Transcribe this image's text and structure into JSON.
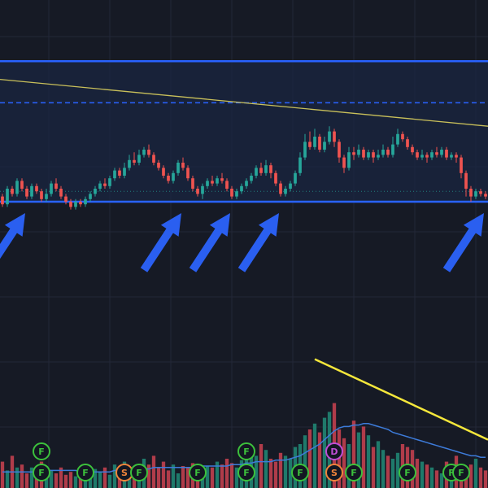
{
  "colors": {
    "background": "#161a25",
    "grid": "#232838",
    "up": "#26a69a",
    "down": "#ef5350",
    "up_volume": "#1f7a6b",
    "down_volume": "#b03c4a",
    "channel_line": "#2962ff",
    "channel_fill": "#1a2540",
    "trendline": "#c9c05a",
    "volume_trendline": "#f5e73b",
    "volume_ma": "#3d7bd9",
    "arrow": "#2a5ff0",
    "marker_f": "#3cc13c",
    "marker_s": "#f0833a",
    "marker_d": "#c04ed6"
  },
  "chart_data": {
    "type": "candlestick",
    "title": "",
    "xlabel": "",
    "ylabel": "",
    "grid": true,
    "price_range": [
      0,
      100
    ],
    "volume_range": [
      0,
      100
    ],
    "channel": {
      "top": 89,
      "bottom": 35,
      "mid_dashed": 73,
      "dotted": 39
    },
    "price_trendline": {
      "start": [
        0,
        82
      ],
      "end": [
        99,
        64
      ]
    },
    "volume_trendline": {
      "start": [
        64,
        88
      ],
      "end": [
        99,
        33
      ]
    },
    "candles": [
      [
        37,
        34,
        38,
        33
      ],
      [
        34,
        40,
        41,
        33
      ],
      [
        40,
        38,
        41,
        37
      ],
      [
        38,
        43,
        44,
        37
      ],
      [
        43,
        40,
        44,
        39
      ],
      [
        40,
        37,
        41,
        36
      ],
      [
        37,
        41,
        42,
        36
      ],
      [
        41,
        39,
        42,
        38
      ],
      [
        39,
        36,
        40,
        35
      ],
      [
        36,
        38,
        40,
        35
      ],
      [
        38,
        42,
        43,
        37
      ],
      [
        42,
        40,
        44,
        39
      ],
      [
        40,
        37,
        41,
        36
      ],
      [
        37,
        35,
        38,
        34
      ],
      [
        35,
        33,
        36,
        32
      ],
      [
        33,
        35,
        36,
        32
      ],
      [
        35,
        34,
        36,
        33
      ],
      [
        34,
        36,
        37,
        33
      ],
      [
        36,
        38,
        39,
        35
      ],
      [
        38,
        40,
        41,
        37
      ],
      [
        40,
        42,
        43,
        39
      ],
      [
        42,
        41,
        44,
        40
      ],
      [
        41,
        44,
        45,
        40
      ],
      [
        44,
        47,
        48,
        43
      ],
      [
        47,
        45,
        48,
        44
      ],
      [
        45,
        48,
        50,
        44
      ],
      [
        48,
        51,
        53,
        47
      ],
      [
        51,
        50,
        54,
        49
      ],
      [
        50,
        53,
        55,
        49
      ],
      [
        53,
        55,
        56,
        52
      ],
      [
        55,
        53,
        57,
        52
      ],
      [
        53,
        50,
        54,
        49
      ],
      [
        50,
        48,
        51,
        47
      ],
      [
        48,
        45,
        49,
        44
      ],
      [
        45,
        43,
        46,
        42
      ],
      [
        43,
        46,
        47,
        42
      ],
      [
        46,
        50,
        51,
        45
      ],
      [
        50,
        48,
        52,
        47
      ],
      [
        48,
        44,
        49,
        43
      ],
      [
        44,
        40,
        45,
        39
      ],
      [
        40,
        38,
        41,
        37
      ],
      [
        38,
        41,
        42,
        36
      ],
      [
        41,
        43,
        44,
        40
      ],
      [
        43,
        42,
        45,
        41
      ],
      [
        42,
        44,
        45,
        41
      ],
      [
        44,
        43,
        46,
        42
      ],
      [
        43,
        40,
        44,
        39
      ],
      [
        40,
        37,
        41,
        36
      ],
      [
        37,
        39,
        40,
        36
      ],
      [
        39,
        41,
        42,
        38
      ],
      [
        41,
        43,
        44,
        40
      ],
      [
        43,
        45,
        46,
        42
      ],
      [
        45,
        48,
        49,
        44
      ],
      [
        48,
        46,
        50,
        45
      ],
      [
        46,
        49,
        51,
        45
      ],
      [
        49,
        46,
        50,
        44
      ],
      [
        46,
        42,
        47,
        41
      ],
      [
        42,
        38,
        43,
        37
      ],
      [
        38,
        40,
        41,
        37
      ],
      [
        40,
        42,
        43,
        39
      ],
      [
        42,
        46,
        47,
        41
      ],
      [
        46,
        52,
        54,
        45
      ],
      [
        52,
        58,
        61,
        51
      ],
      [
        58,
        56,
        62,
        55
      ],
      [
        56,
        60,
        63,
        55
      ],
      [
        60,
        55,
        61,
        54
      ],
      [
        55,
        58,
        60,
        54
      ],
      [
        58,
        62,
        64,
        57
      ],
      [
        62,
        58,
        63,
        56
      ],
      [
        58,
        52,
        59,
        50
      ],
      [
        52,
        48,
        53,
        46
      ],
      [
        48,
        54,
        56,
        47
      ],
      [
        54,
        53,
        56,
        51
      ],
      [
        53,
        55,
        57,
        52
      ],
      [
        55,
        52,
        56,
        51
      ],
      [
        52,
        54,
        55,
        51
      ],
      [
        54,
        52,
        55,
        50
      ],
      [
        52,
        53,
        55,
        51
      ],
      [
        53,
        55,
        57,
        52
      ],
      [
        55,
        53,
        56,
        52
      ],
      [
        53,
        57,
        60,
        52
      ],
      [
        57,
        61,
        63,
        56
      ],
      [
        61,
        59,
        62,
        58
      ],
      [
        59,
        56,
        60,
        55
      ],
      [
        56,
        54,
        57,
        53
      ],
      [
        54,
        52,
        55,
        51
      ],
      [
        52,
        53,
        55,
        51
      ],
      [
        53,
        52,
        54,
        50
      ],
      [
        52,
        54,
        55,
        51
      ],
      [
        54,
        53,
        56,
        52
      ],
      [
        53,
        55,
        56,
        52
      ],
      [
        55,
        52,
        56,
        51
      ],
      [
        52,
        53,
        54,
        51
      ],
      [
        53,
        52,
        54,
        50
      ],
      [
        52,
        46,
        53,
        44
      ],
      [
        46,
        40,
        47,
        37
      ],
      [
        40,
        37,
        41,
        35
      ],
      [
        37,
        39,
        40,
        36
      ],
      [
        39,
        38,
        40,
        37
      ],
      [
        38,
        37,
        39,
        36
      ]
    ],
    "volumes": [
      18,
      12,
      22,
      14,
      16,
      10,
      14,
      12,
      18,
      15,
      12,
      10,
      14,
      9,
      11,
      8,
      12,
      10,
      9,
      13,
      11,
      14,
      9,
      16,
      13,
      18,
      11,
      15,
      12,
      20,
      16,
      22,
      14,
      18,
      12,
      16,
      10,
      15,
      14,
      17,
      12,
      13,
      15,
      14,
      18,
      16,
      20,
      17,
      14,
      19,
      24,
      28,
      22,
      30,
      26,
      20,
      18,
      24,
      22,
      20,
      28,
      30,
      36,
      40,
      44,
      38,
      48,
      52,
      58,
      40,
      34,
      30,
      46,
      38,
      42,
      36,
      28,
      32,
      26,
      22,
      20,
      24,
      30,
      28,
      26,
      20,
      18,
      16,
      14,
      12,
      10,
      18,
      15,
      22,
      12,
      10,
      16,
      20,
      14,
      12
    ],
    "volume_ma": [
      11,
      11,
      11,
      11,
      11,
      11,
      11,
      11,
      11,
      12,
      12,
      12,
      12,
      12,
      12,
      12,
      11,
      11,
      11,
      11,
      11,
      11,
      11,
      12,
      12,
      12,
      12,
      13,
      13,
      13,
      13,
      14,
      14,
      14,
      14,
      14,
      14,
      14,
      14,
      14,
      15,
      15,
      15,
      15,
      15,
      15,
      15,
      16,
      16,
      16,
      17,
      17,
      18,
      18,
      18,
      18,
      19,
      19,
      19,
      20,
      21,
      22,
      24,
      26,
      28,
      30,
      33,
      36,
      39,
      41,
      42,
      42,
      43,
      43,
      44,
      44,
      43,
      42,
      41,
      40,
      38,
      37,
      36,
      35,
      34,
      33,
      32,
      31,
      30,
      29,
      28,
      27,
      26,
      25,
      24,
      23,
      22,
      22,
      21,
      21
    ],
    "arrows": [
      {
        "index": 4
      },
      {
        "index": 36
      },
      {
        "index": 46
      },
      {
        "index": 56
      },
      {
        "index": 98
      }
    ],
    "event_markers": [
      {
        "index": 8,
        "label": "F",
        "row": 2
      },
      {
        "index": 8,
        "label": "F",
        "row": 1
      },
      {
        "index": 17,
        "label": "F",
        "row": 1
      },
      {
        "index": 25,
        "label": "S",
        "row": 1
      },
      {
        "index": 28,
        "label": "F",
        "row": 1
      },
      {
        "index": 40,
        "label": "F",
        "row": 1
      },
      {
        "index": 50,
        "label": "F",
        "row": 2
      },
      {
        "index": 50,
        "label": "F",
        "row": 1
      },
      {
        "index": 61,
        "label": "F",
        "row": 1
      },
      {
        "index": 68,
        "label": "D",
        "row": 2
      },
      {
        "index": 68,
        "label": "S",
        "row": 1
      },
      {
        "index": 72,
        "label": "F",
        "row": 1
      },
      {
        "index": 83,
        "label": "F",
        "row": 1
      },
      {
        "index": 92,
        "label": "F",
        "row": 1
      },
      {
        "index": 94,
        "label": "F",
        "row": 1
      }
    ]
  }
}
